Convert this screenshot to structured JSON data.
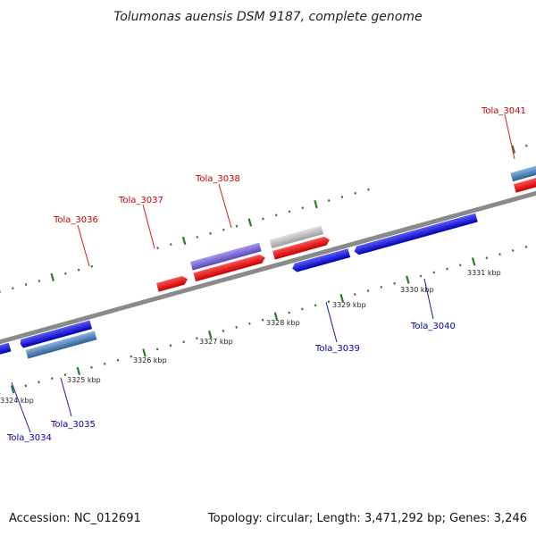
{
  "title": "Tolumonas auensis DSM 9187, complete genome",
  "accession_text": "Accession: NC_012691",
  "topology_text": "Topology: circular; Length: 3,471,292 bp; Genes: 3,246",
  "colors": {
    "forward_cds": "#ee0000",
    "reverse_cds": "#0000dd",
    "forward_label": "#cc0000",
    "reverse_label": "#0000aa",
    "tick_mark": "#2a7a2a",
    "backbone": "#8a8a8a",
    "purple_feature": "#7b68d8",
    "grey_feature": "#c4c4c4",
    "steelblue_feature": "#4a7fb8"
  },
  "genes": [
    {
      "id": "Tola_3034",
      "strand": "reverse"
    },
    {
      "id": "Tola_3035",
      "strand": "reverse"
    },
    {
      "id": "Tola_3036",
      "strand": "forward"
    },
    {
      "id": "Tola_3037",
      "strand": "forward"
    },
    {
      "id": "Tola_3038",
      "strand": "forward"
    },
    {
      "id": "Tola_3039",
      "strand": "reverse"
    },
    {
      "id": "Tola_3040",
      "strand": "reverse"
    },
    {
      "id": "Tola_3041",
      "strand": "forward"
    }
  ],
  "ticks": [
    "3324 kbp",
    "3325 kbp",
    "3326 kbp",
    "3327 kbp",
    "3328 kbp",
    "3329 kbp",
    "3330 kbp",
    "3331 kbp"
  ]
}
